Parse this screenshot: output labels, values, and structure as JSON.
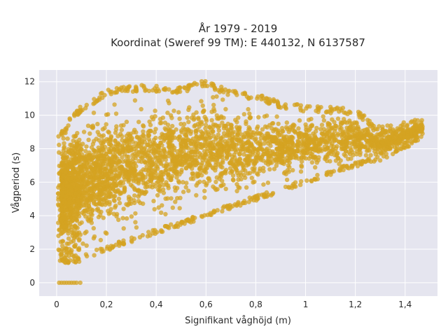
{
  "chart_data": {
    "type": "scatter",
    "title_line1": "År 1979 - 2019",
    "title_line2": "Koordinat (Sweref 99 TM): E 440132, N 6137587",
    "xlabel": "Signifikant våghöjd (m)",
    "ylabel": "Vågperiod (s)",
    "xlim": [
      -0.07,
      1.53
    ],
    "ylim": [
      -0.8,
      12.7
    ],
    "x_ticks": [
      0,
      0.2,
      0.4,
      0.6,
      0.8,
      1,
      1.2,
      1.4
    ],
    "x_tick_labels": [
      "0",
      "0,2",
      "0,4",
      "0,6",
      "0,8",
      "1",
      "1,2",
      "1,4"
    ],
    "y_ticks": [
      0,
      2,
      4,
      6,
      8,
      10,
      12
    ],
    "y_tick_labels": [
      "0",
      "2",
      "4",
      "6",
      "8",
      "10",
      "12"
    ],
    "grid": true,
    "plot_background": "#e5e5ef",
    "marker_color": "#d4a321",
    "envelope": {
      "x": [
        0.02,
        0.05,
        0.1,
        0.2,
        0.3,
        0.4,
        0.5,
        0.6,
        0.7,
        0.8,
        0.9,
        1.0,
        1.1,
        1.2,
        1.3,
        1.4,
        1.47
      ],
      "y_min": [
        1.2,
        1.0,
        1.3,
        1.9,
        2.4,
        2.9,
        3.4,
        3.9,
        4.4,
        4.9,
        5.4,
        5.9,
        6.4,
        6.9,
        7.3,
        8.0,
        8.6
      ],
      "y_max": [
        9.0,
        9.8,
        10.6,
        11.5,
        11.8,
        11.8,
        11.7,
        12.1,
        11.5,
        11.3,
        10.8,
        10.6,
        10.5,
        10.4,
        9.3,
        9.6,
        9.8
      ]
    },
    "zero_period_points": [
      {
        "x": 0.01,
        "y": 0
      },
      {
        "x": 0.02,
        "y": 0
      },
      {
        "x": 0.03,
        "y": 0
      },
      {
        "x": 0.04,
        "y": 0
      },
      {
        "x": 0.05,
        "y": 0
      },
      {
        "x": 0.06,
        "y": 0
      },
      {
        "x": 0.07,
        "y": 0
      },
      {
        "x": 0.08,
        "y": 0
      },
      {
        "x": 0.095,
        "y": 0
      }
    ]
  }
}
